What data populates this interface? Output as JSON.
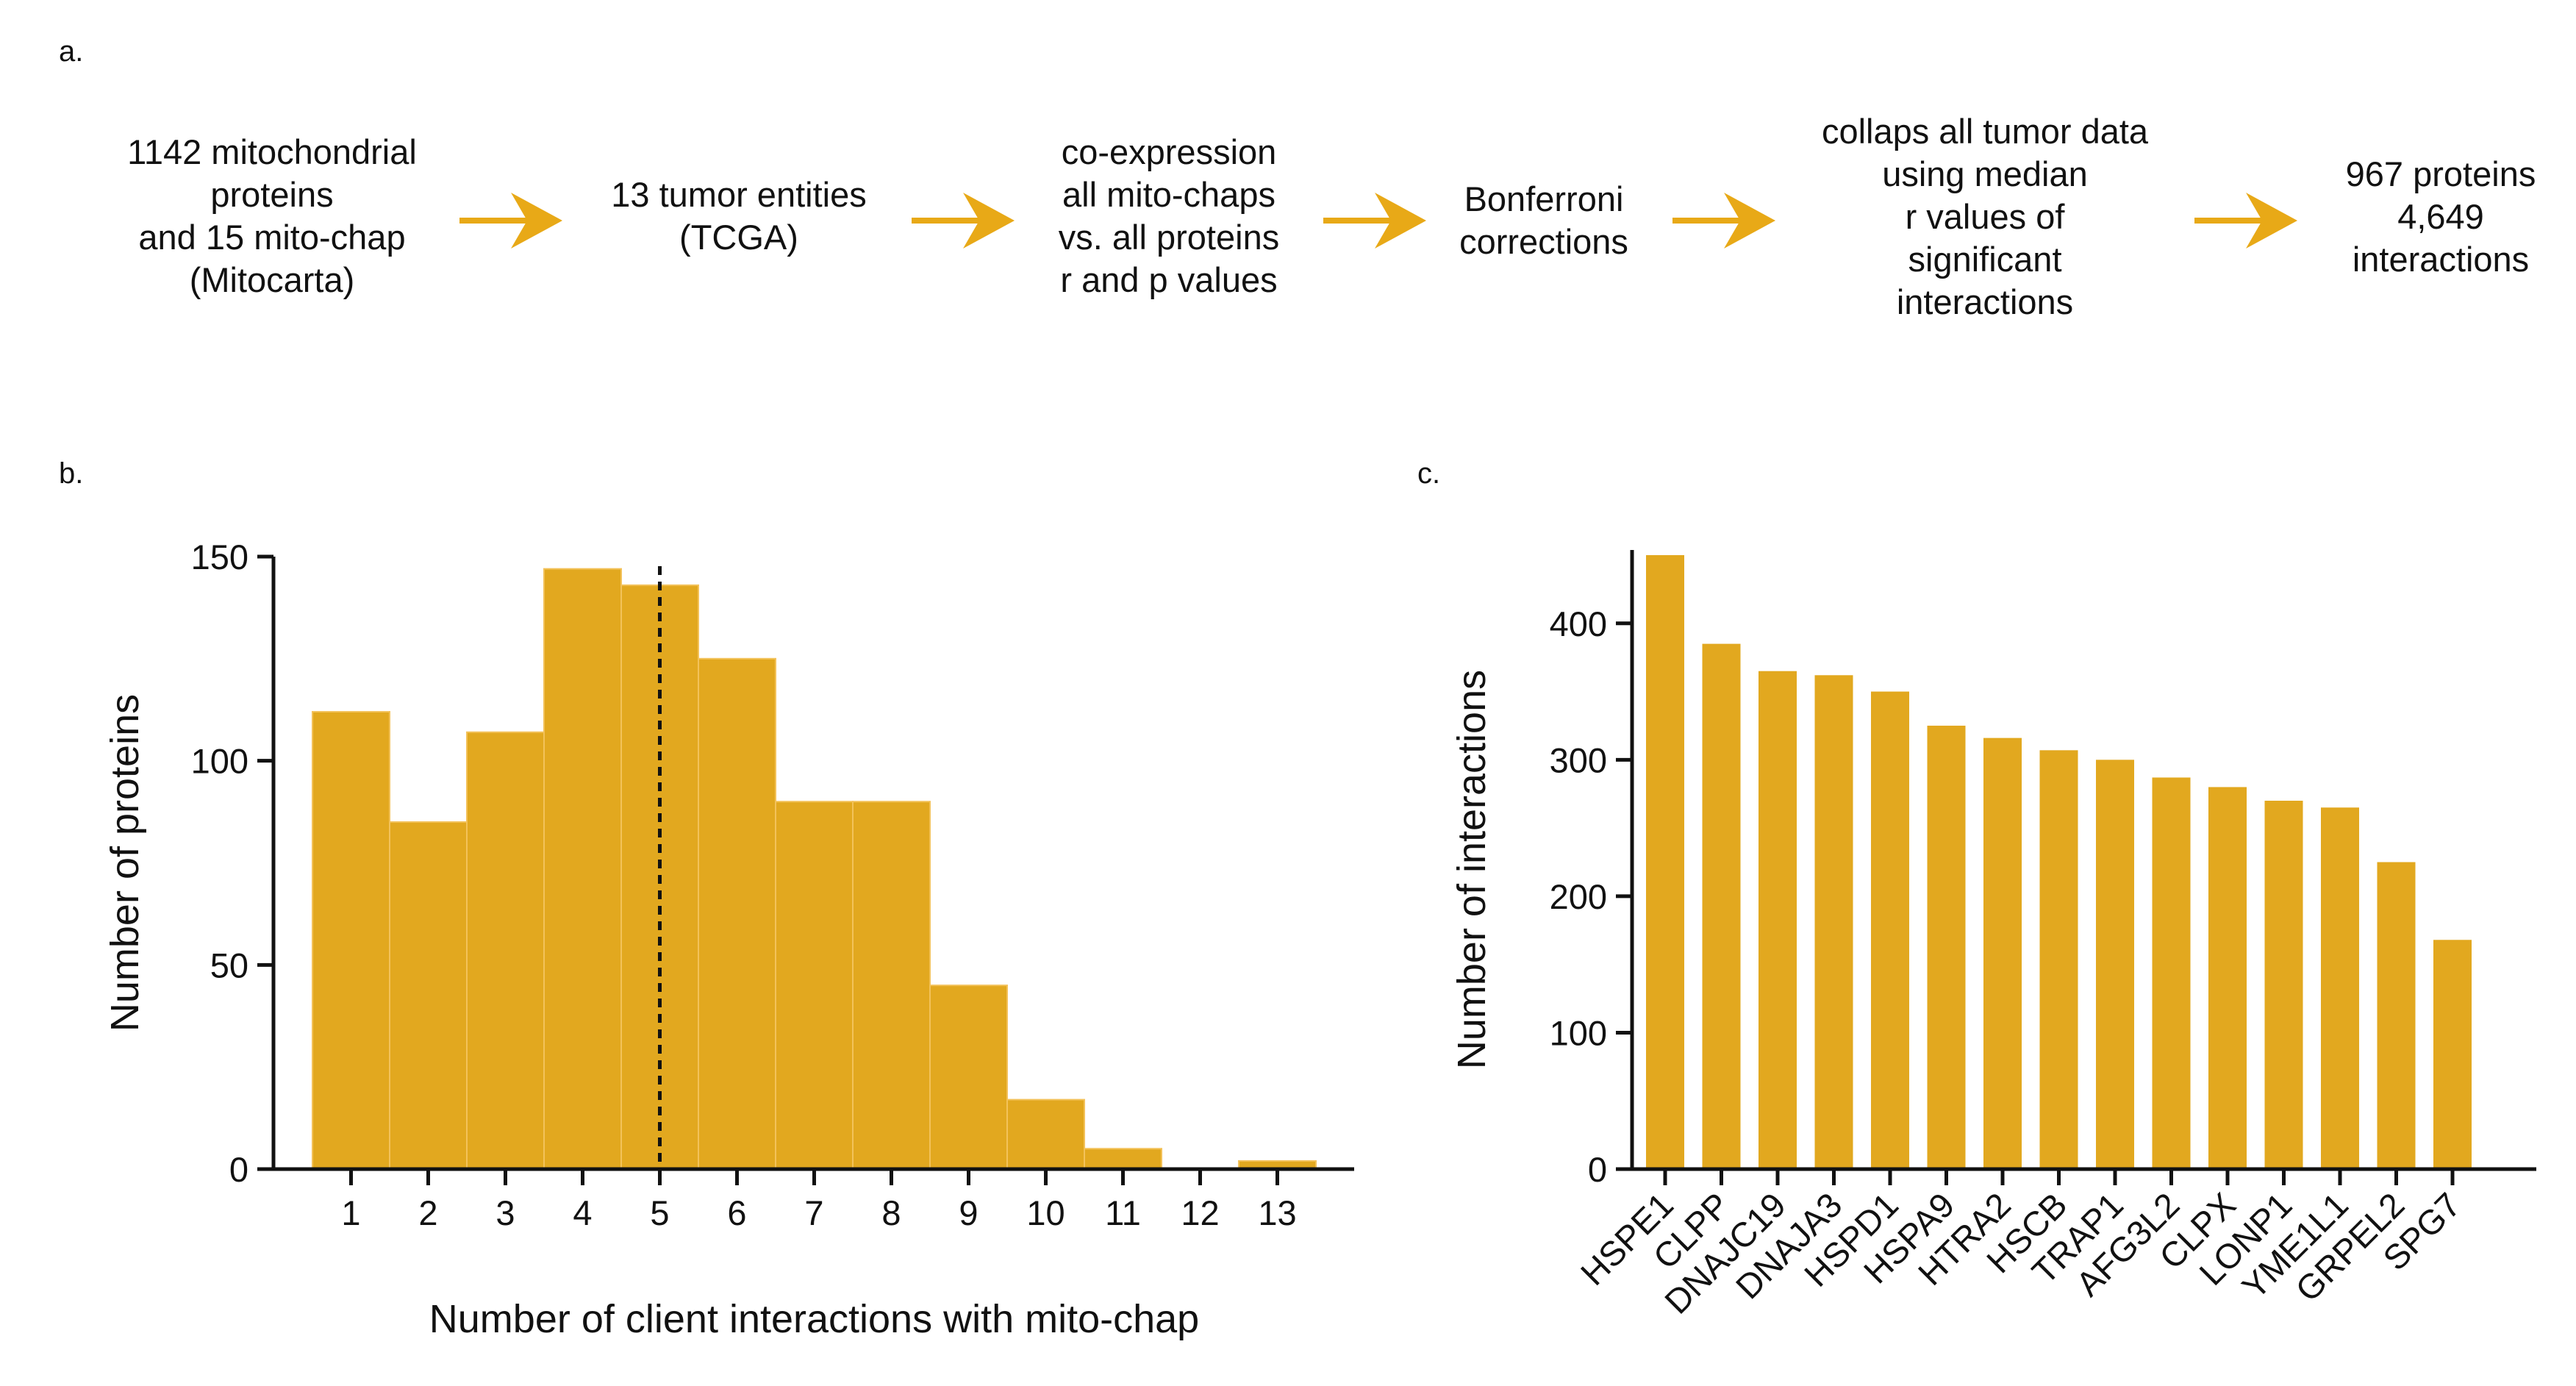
{
  "panels": {
    "a": "a.",
    "b": "b.",
    "c": "c."
  },
  "flow": {
    "steps": [
      [
        "1142 mitochondrial",
        "proteins",
        "and 15 mito-chap",
        "(Mitocarta)"
      ],
      [
        "13 tumor entities",
        "(TCGA)"
      ],
      [
        "co-expression",
        "all mito-chaps",
        "vs. all proteins",
        "r and p values"
      ],
      [
        "Bonferroni",
        "corrections"
      ],
      [
        "collaps all tumor data",
        "using median",
        "r values of",
        "significant",
        "interactions"
      ],
      [
        "967 proteins",
        "4,649",
        "interactions"
      ]
    ],
    "arrow_color": "#e8a917"
  },
  "colors": {
    "bar": "#e2a81f",
    "axis": "#111111"
  },
  "chart_data": [
    {
      "type": "bar",
      "subtype": "histogram",
      "title": "",
      "xlabel": "Number of client interactions with mito-chap",
      "ylabel": "Number of proteins",
      "categories": [
        "1",
        "2",
        "3",
        "4",
        "5",
        "6",
        "7",
        "8",
        "9",
        "10",
        "11",
        "12",
        "13"
      ],
      "values": [
        112,
        85,
        107,
        147,
        143,
        125,
        90,
        90,
        45,
        17,
        5,
        0,
        2
      ],
      "ylim": [
        0,
        150
      ],
      "yticks": [
        0,
        50,
        100,
        150
      ],
      "reference_line": {
        "x": 5,
        "style": "dashed"
      }
    },
    {
      "type": "bar",
      "title": "",
      "xlabel": "",
      "ylabel": "Number of interactions",
      "categories": [
        "HSPE1",
        "CLPP",
        "DNAJC19",
        "DNAJA3",
        "HSPD1",
        "HSPA9",
        "HTRA2",
        "HSCB",
        "TRAP1",
        "AFG3L2",
        "CLPX",
        "LONP1",
        "YME1L1",
        "GRPEL2",
        "SPG7"
      ],
      "values": [
        450,
        385,
        365,
        362,
        350,
        325,
        316,
        307,
        300,
        287,
        280,
        270,
        265,
        225,
        168
      ],
      "ylim": [
        0,
        450
      ],
      "yticks": [
        0,
        100,
        200,
        300,
        400
      ]
    }
  ]
}
